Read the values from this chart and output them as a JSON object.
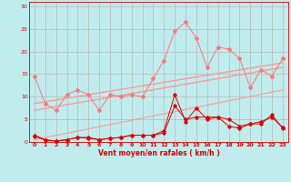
{
  "xlabel": "Vent moyen/en rafales ( km/h )",
  "xlim": [
    -0.5,
    23.5
  ],
  "ylim": [
    0,
    31
  ],
  "yticks": [
    0,
    5,
    10,
    15,
    20,
    25,
    30
  ],
  "xticks": [
    0,
    1,
    2,
    3,
    4,
    5,
    6,
    7,
    8,
    9,
    10,
    11,
    12,
    13,
    14,
    15,
    16,
    17,
    18,
    19,
    20,
    21,
    22,
    23
  ],
  "bg_color": "#c0ecee",
  "grid_color": "#b0b0b0",
  "color_dark_red": "#dd0000",
  "color_light_pink": "#ff9999",
  "color_med_pink": "#ff7777",
  "trend1_x": [
    0,
    23
  ],
  "trend1_y": [
    8.5,
    17.5
  ],
  "trend2_x": [
    0,
    23
  ],
  "trend2_y": [
    7.0,
    16.5
  ],
  "trend3_x": [
    0,
    23
  ],
  "trend3_y": [
    0.5,
    11.5
  ],
  "gust_x": [
    0,
    1,
    2,
    3,
    4,
    5,
    6,
    7,
    8,
    9,
    10,
    11,
    12,
    13,
    14,
    15,
    16,
    17,
    18,
    19,
    20,
    21,
    22,
    23
  ],
  "gust_y": [
    14.5,
    8.5,
    7.0,
    10.5,
    11.5,
    10.5,
    7.0,
    10.5,
    10.0,
    10.5,
    10.0,
    14.0,
    18.0,
    24.5,
    26.5,
    23.0,
    16.5,
    21.0,
    20.5,
    18.5,
    12.0,
    16.0,
    14.5,
    18.5
  ],
  "mean1_x": [
    0,
    1,
    2,
    3,
    4,
    5,
    6,
    7,
    8,
    9,
    10,
    11,
    12,
    13,
    14,
    15,
    16,
    17,
    18,
    19,
    20,
    21,
    22,
    23
  ],
  "mean1_y": [
    1.5,
    0.5,
    0.2,
    0.5,
    1.0,
    1.0,
    0.5,
    0.8,
    1.0,
    1.5,
    1.5,
    1.5,
    2.0,
    8.0,
    5.0,
    5.5,
    5.5,
    5.5,
    3.5,
    3.0,
    4.0,
    4.0,
    6.0,
    3.0
  ],
  "mean2_x": [
    0,
    1,
    2,
    3,
    4,
    5,
    6,
    7,
    8,
    9,
    10,
    11,
    12,
    13,
    14,
    15,
    16,
    17,
    18,
    19,
    20,
    21,
    22,
    23
  ],
  "mean2_y": [
    1.3,
    0.4,
    0.2,
    0.5,
    1.0,
    0.8,
    0.5,
    0.8,
    1.0,
    1.5,
    1.5,
    1.5,
    2.5,
    10.5,
    4.5,
    7.5,
    5.0,
    5.5,
    5.0,
    3.5,
    4.0,
    4.5,
    5.5,
    3.2
  ],
  "arrows_x": [
    0,
    1,
    2,
    3,
    4,
    5,
    6,
    7,
    8,
    9,
    10,
    11,
    12,
    13,
    14,
    15,
    16,
    17,
    18,
    19,
    20,
    21,
    22,
    23
  ],
  "arrows_angle": [
    225,
    90,
    90,
    90,
    90,
    90,
    135,
    135,
    135,
    90,
    90,
    90,
    90,
    90,
    0,
    135,
    135,
    90,
    90,
    135,
    90,
    90,
    90,
    90
  ]
}
